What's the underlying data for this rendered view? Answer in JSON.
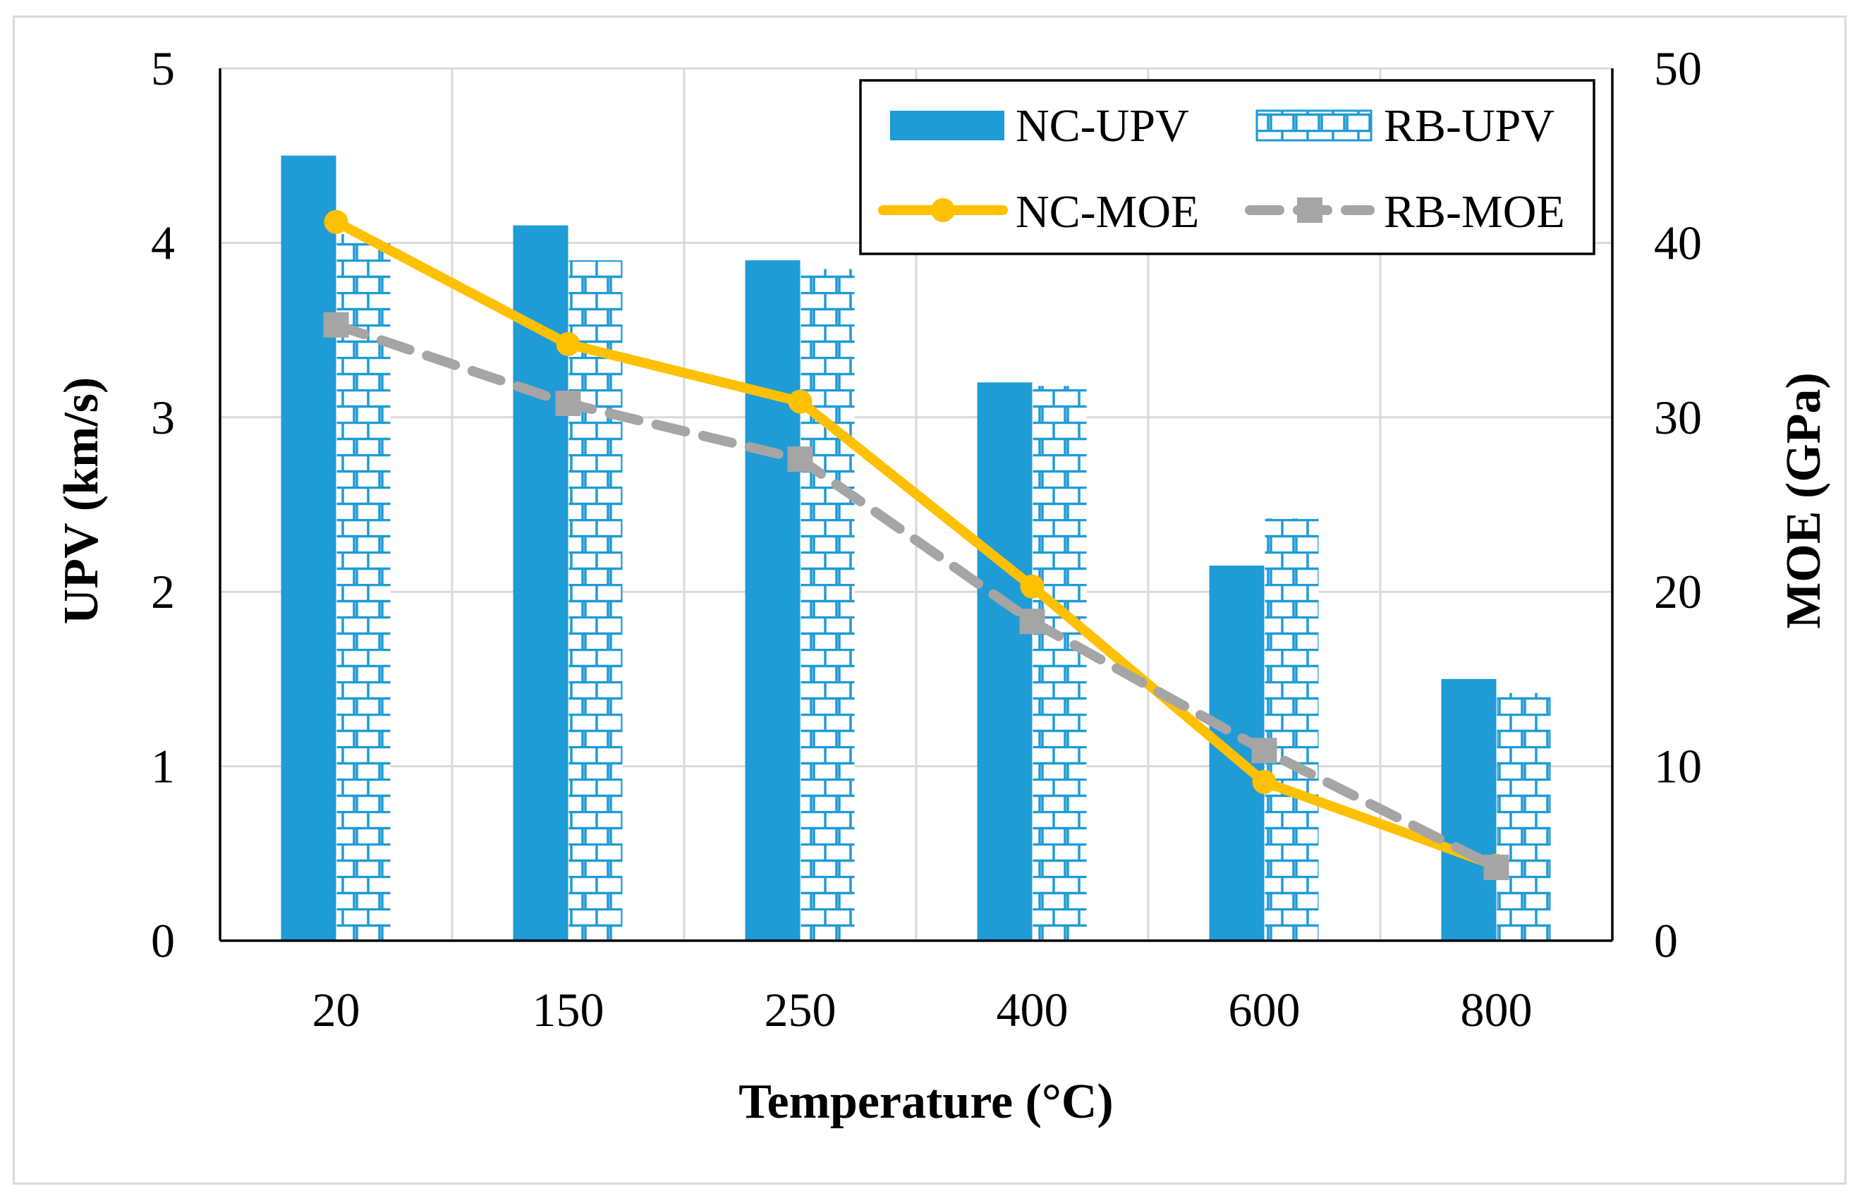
{
  "chart_data": {
    "type": "bar",
    "title": "",
    "xlabel": "Temperature (°C)",
    "ylabel": "UPV (km/s)",
    "y2label": "MOE (GPa)",
    "categories": [
      "20",
      "150",
      "250",
      "400",
      "600",
      "800"
    ],
    "ylim": [
      0,
      5
    ],
    "y2lim": [
      0,
      50
    ],
    "yticks": [
      "0",
      "1",
      "2",
      "3",
      "4",
      "5"
    ],
    "y2ticks": [
      "0",
      "10",
      "20",
      "30",
      "40",
      "50"
    ],
    "grid": true,
    "legend_position": "top-right",
    "series": [
      {
        "name": "NC-UPV",
        "kind": "bar",
        "axis": "left",
        "color": "#1f9bd6",
        "pattern": "solid",
        "values": [
          4.5,
          4.1,
          3.9,
          3.2,
          2.15,
          1.5
        ]
      },
      {
        "name": "RB-UPV",
        "kind": "bar",
        "axis": "left",
        "color": "#1f9bd6",
        "pattern": "brick",
        "values": [
          4.05,
          3.9,
          3.85,
          3.18,
          2.42,
          1.42
        ]
      },
      {
        "name": "NC-MOE",
        "kind": "line",
        "axis": "right",
        "color": "#ffc000",
        "marker": "circle",
        "values": [
          41.2,
          34.2,
          30.9,
          20.3,
          9.1,
          4.3
        ]
      },
      {
        "name": "RB-MOE",
        "kind": "line",
        "axis": "right",
        "color": "#a5a5a5",
        "marker": "square",
        "dashed": true,
        "values": [
          35.3,
          30.8,
          27.6,
          18.3,
          10.9,
          4.2
        ]
      }
    ]
  }
}
